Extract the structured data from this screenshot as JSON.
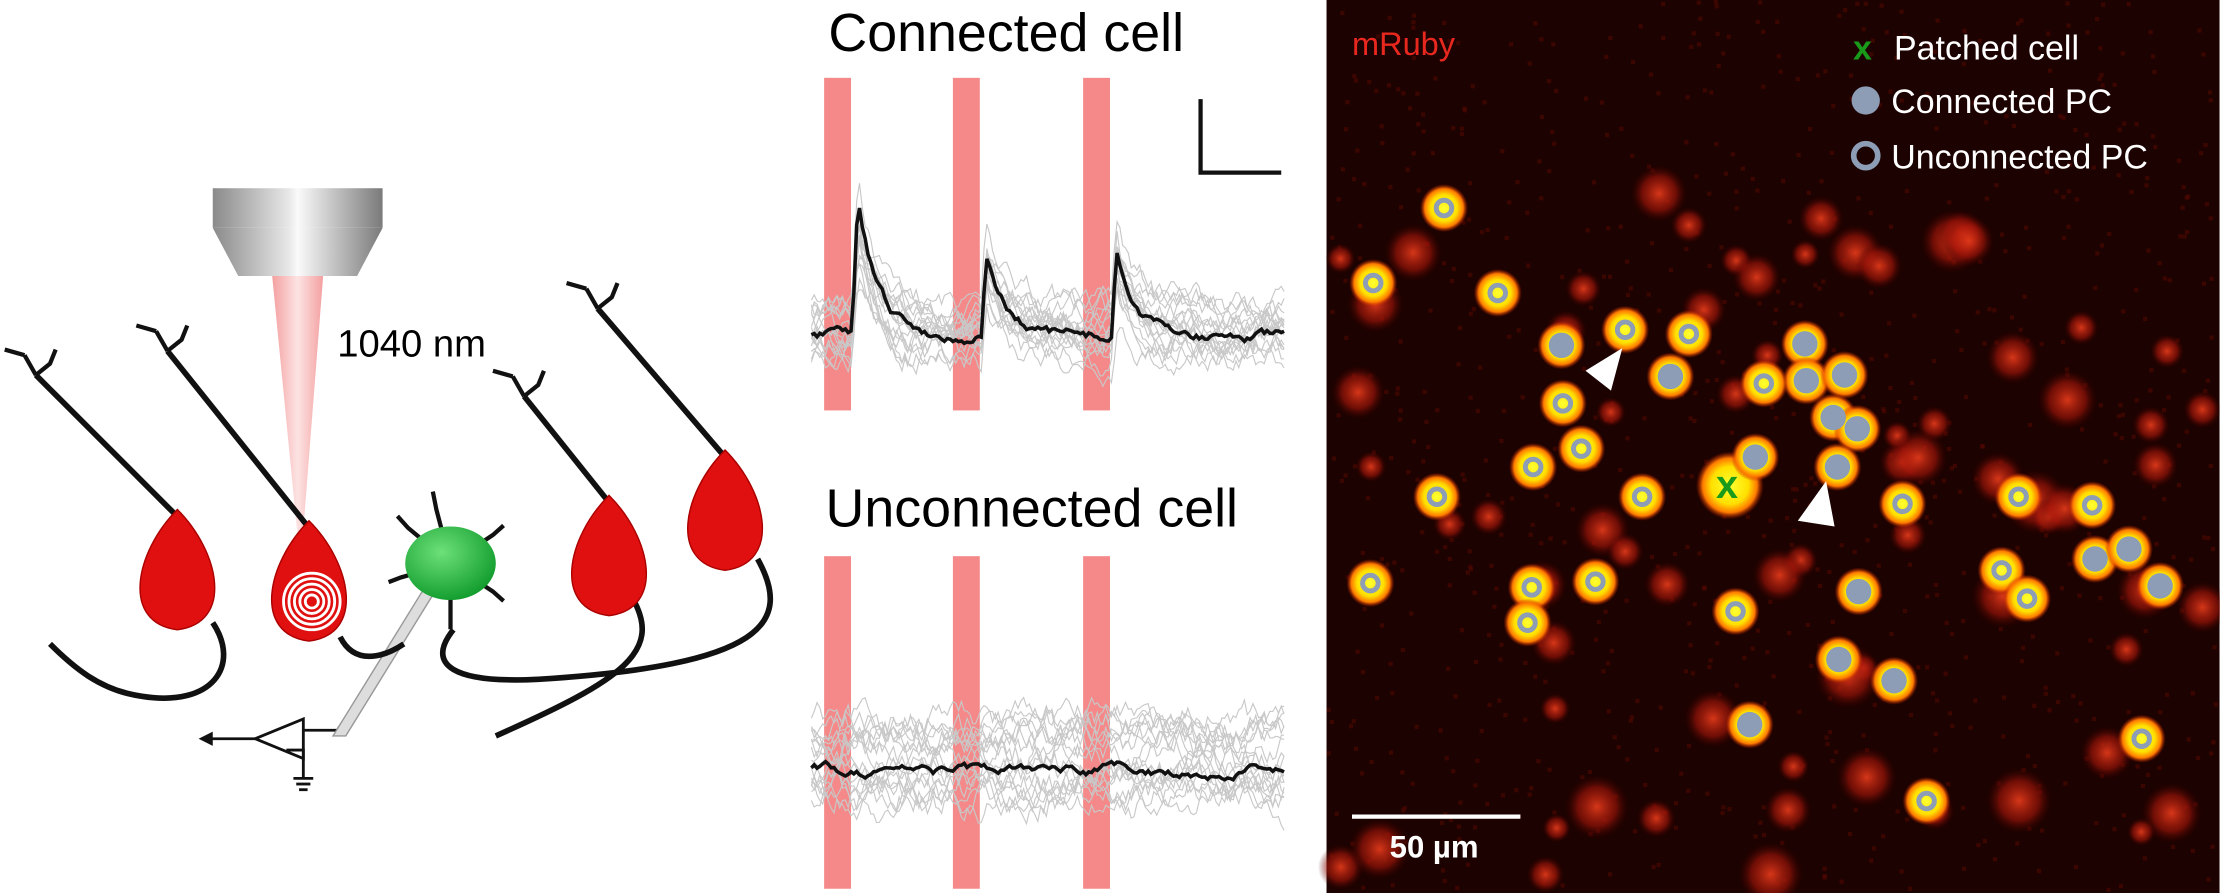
{
  "left_panel": {
    "wavelength_label": "1040 nm"
  },
  "traces_panel": {
    "connected_title": "Connected cell",
    "unconnected_title": "Unconnected cell"
  },
  "image_panel": {
    "channel_label": "mRuby",
    "legend": {
      "patched_marker": "x",
      "patched": "Patched cell",
      "connected": "Connected PC",
      "unconnected": "Unconnected PC"
    },
    "patched_marker": "x",
    "scale_bar_label": "50 µm"
  }
}
